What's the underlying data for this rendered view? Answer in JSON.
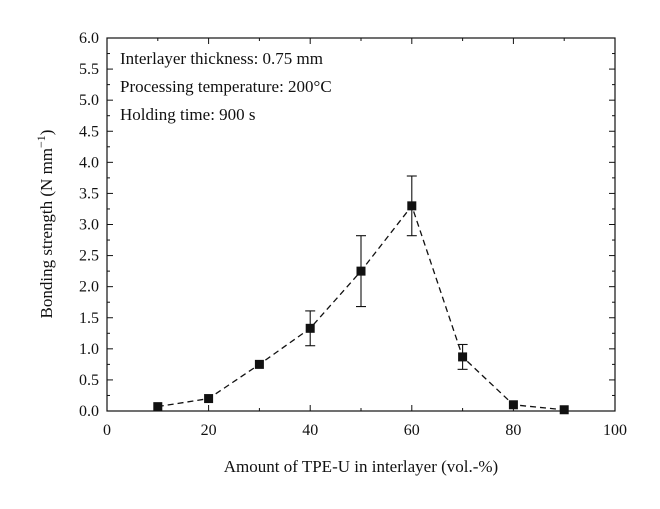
{
  "chart_data": {
    "type": "line",
    "title": "",
    "xlabel": "Amount of TPE-U in interlayer (vol.-%)",
    "ylabel": "Bonding strength (N mm",
    "ylabel_sup": "−1",
    "ylabel_close": ")",
    "xlim": [
      0,
      100
    ],
    "ylim": [
      0,
      6
    ],
    "x_ticks": [
      0,
      20,
      40,
      60,
      80,
      100
    ],
    "y_ticks": [
      "0.0",
      "0.5",
      "1.0",
      "1.5",
      "2.0",
      "2.5",
      "3.0",
      "3.5",
      "4.0",
      "4.5",
      "5.0",
      "5.5",
      "6.0"
    ],
    "annotations": [
      "Interlayer thickness: 0.75 mm",
      "Processing temperature: 200°C",
      "Holding time: 900 s"
    ],
    "grid": false,
    "line_style": "dashed",
    "marker": "square",
    "series": [
      {
        "x": [
          10,
          20,
          30,
          40,
          50,
          60,
          70,
          80,
          90
        ],
        "y": [
          0.07,
          0.2,
          0.75,
          1.33,
          2.25,
          3.3,
          0.87,
          0.1,
          0.02
        ],
        "error": [
          0,
          0,
          0,
          0.28,
          0.57,
          0.48,
          0.2,
          0,
          0
        ]
      }
    ],
    "colors": {
      "marker": "#111111",
      "line": "#111111",
      "axis": "#111111"
    }
  }
}
